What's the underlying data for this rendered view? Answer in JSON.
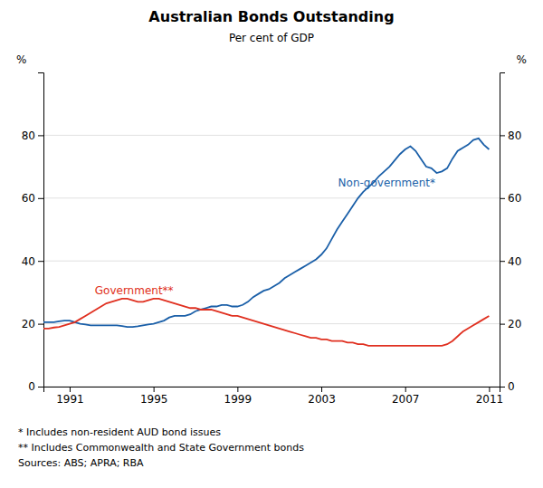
{
  "chart_data": {
    "type": "line",
    "title": "Australian Bonds Outstanding",
    "subtitle": "Per cent of GDP",
    "ylabel": "%",
    "y2label": "%",
    "xlim": [
      1989.75,
      2011.5
    ],
    "xticks": [
      1991,
      1995,
      1999,
      2003,
      2007,
      2011
    ],
    "ylim": [
      0,
      100
    ],
    "yticks": [
      0,
      20,
      40,
      60,
      80
    ],
    "y2lim": [
      0,
      100
    ],
    "y2ticks": [
      0,
      20,
      40,
      60,
      80
    ],
    "grid": true,
    "x": [
      1989.75,
      1990.0,
      1990.25,
      1990.5,
      1990.75,
      1991.0,
      1991.25,
      1991.5,
      1991.75,
      1992.0,
      1992.25,
      1992.5,
      1992.75,
      1993.0,
      1993.25,
      1993.5,
      1993.75,
      1994.0,
      1994.25,
      1994.5,
      1994.75,
      1995.0,
      1995.25,
      1995.5,
      1995.75,
      1996.0,
      1996.25,
      1996.5,
      1996.75,
      1997.0,
      1997.25,
      1997.5,
      1997.75,
      1998.0,
      1998.25,
      1998.5,
      1998.75,
      1999.0,
      1999.25,
      1999.5,
      1999.75,
      2000.0,
      2000.25,
      2000.5,
      2000.75,
      2001.0,
      2001.25,
      2001.5,
      2001.75,
      2002.0,
      2002.25,
      2002.5,
      2002.75,
      2003.0,
      2003.25,
      2003.5,
      2003.75,
      2004.0,
      2004.25,
      2004.5,
      2004.75,
      2005.0,
      2005.25,
      2005.5,
      2005.75,
      2006.0,
      2006.25,
      2006.5,
      2006.75,
      2007.0,
      2007.25,
      2007.5,
      2007.75,
      2008.0,
      2008.25,
      2008.5,
      2008.75,
      2009.0,
      2009.25,
      2009.5,
      2009.75,
      2010.0,
      2010.25,
      2010.5,
      2010.75,
      2011.0
    ],
    "series": [
      {
        "color": "#1a5fa8",
        "values": [
          20.5,
          20.5,
          20.5,
          20.8,
          21.0,
          21.0,
          20.5,
          20.0,
          19.8,
          19.5,
          19.5,
          19.5,
          19.5,
          19.5,
          19.5,
          19.3,
          19.0,
          19.0,
          19.2,
          19.5,
          19.8,
          20.0,
          20.5,
          21.0,
          22.0,
          22.5,
          22.5,
          22.5,
          23.0,
          24.0,
          24.5,
          25.0,
          25.5,
          25.5,
          26.0,
          26.0,
          25.5,
          25.5,
          26.0,
          27.0,
          28.5,
          29.5,
          30.5,
          31.0,
          32.0,
          33.0,
          34.5,
          35.5,
          36.5,
          37.5,
          38.5,
          39.5,
          40.5,
          42.0,
          44.0,
          47.0,
          50.0,
          52.5,
          55.0,
          57.5,
          60.0,
          62.0,
          63.5,
          65.0,
          67.0,
          68.5,
          70.0,
          72.0,
          74.0,
          75.5,
          76.5,
          75.0,
          72.5,
          70.0,
          69.5,
          68.0,
          68.5,
          69.5,
          72.5,
          75.0,
          76.0,
          77.0,
          78.5,
          79.0,
          77.0,
          75.5
        ]
      },
      {
        "color": "#e03020",
        "values": [
          18.5,
          18.5,
          18.8,
          19.0,
          19.5,
          20.0,
          20.5,
          21.5,
          22.5,
          23.5,
          24.5,
          25.5,
          26.5,
          27.0,
          27.5,
          28.0,
          28.0,
          27.5,
          27.0,
          27.0,
          27.5,
          28.0,
          28.0,
          27.5,
          27.0,
          26.5,
          26.0,
          25.5,
          25.0,
          25.0,
          24.5,
          24.5,
          24.5,
          24.0,
          23.5,
          23.0,
          22.5,
          22.5,
          22.0,
          21.5,
          21.0,
          20.5,
          20.0,
          19.5,
          19.0,
          18.5,
          18.0,
          17.5,
          17.0,
          16.5,
          16.0,
          15.5,
          15.5,
          15.0,
          15.0,
          14.5,
          14.5,
          14.5,
          14.0,
          14.0,
          13.5,
          13.5,
          13.0,
          13.0,
          13.0,
          13.0,
          13.0,
          13.0,
          13.0,
          13.0,
          13.0,
          13.0,
          13.0,
          13.0,
          13.0,
          13.0,
          13.0,
          13.5,
          14.5,
          16.0,
          17.5,
          18.5,
          19.5,
          20.5,
          21.5,
          22.5
        ]
      }
    ],
    "annotations": [
      {
        "text": "Non-government*",
        "x": 2003.8,
        "y": 65,
        "color": "#1a5fa8"
      },
      {
        "text": "Government**",
        "x": 1992.2,
        "y": 30.5,
        "color": "#e03020"
      }
    ],
    "footnotes": [
      "*    Includes non-resident AUD bond issues",
      "**  Includes Commonwealth and State Government bonds",
      "Sources: ABS; APRA; RBA"
    ]
  }
}
